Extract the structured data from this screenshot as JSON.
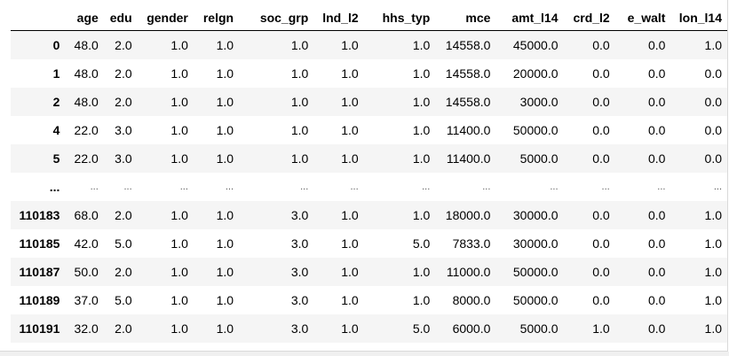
{
  "dataframe": {
    "columns": [
      "age",
      "edu",
      "gender",
      "relgn",
      "soc_grp",
      "lnd_l2",
      "hhs_typ",
      "mce",
      "amt_l14",
      "crd_l2",
      "e_walt",
      "lon_l14"
    ],
    "rows": [
      {
        "index": "0",
        "cells": [
          "48.0",
          "2.0",
          "1.0",
          "1.0",
          "1.0",
          "1.0",
          "1.0",
          "14558.0",
          "45000.0",
          "0.0",
          "0.0",
          "1.0"
        ]
      },
      {
        "index": "1",
        "cells": [
          "48.0",
          "2.0",
          "1.0",
          "1.0",
          "1.0",
          "1.0",
          "1.0",
          "14558.0",
          "20000.0",
          "0.0",
          "0.0",
          "0.0"
        ]
      },
      {
        "index": "2",
        "cells": [
          "48.0",
          "2.0",
          "1.0",
          "1.0",
          "1.0",
          "1.0",
          "1.0",
          "14558.0",
          "3000.0",
          "0.0",
          "0.0",
          "0.0"
        ]
      },
      {
        "index": "4",
        "cells": [
          "22.0",
          "3.0",
          "1.0",
          "1.0",
          "1.0",
          "1.0",
          "1.0",
          "11400.0",
          "50000.0",
          "0.0",
          "0.0",
          "0.0"
        ]
      },
      {
        "index": "5",
        "cells": [
          "22.0",
          "3.0",
          "1.0",
          "1.0",
          "1.0",
          "1.0",
          "1.0",
          "11400.0",
          "5000.0",
          "0.0",
          "0.0",
          "0.0"
        ]
      },
      {
        "index": "...",
        "cells": [
          "...",
          "...",
          "...",
          "...",
          "...",
          "...",
          "...",
          "...",
          "...",
          "...",
          "...",
          "..."
        ]
      },
      {
        "index": "110183",
        "cells": [
          "68.0",
          "2.0",
          "1.0",
          "1.0",
          "3.0",
          "1.0",
          "1.0",
          "18000.0",
          "30000.0",
          "0.0",
          "0.0",
          "1.0"
        ]
      },
      {
        "index": "110185",
        "cells": [
          "42.0",
          "5.0",
          "1.0",
          "1.0",
          "3.0",
          "1.0",
          "5.0",
          "7833.0",
          "30000.0",
          "0.0",
          "0.0",
          "1.0"
        ]
      },
      {
        "index": "110187",
        "cells": [
          "50.0",
          "2.0",
          "1.0",
          "1.0",
          "3.0",
          "1.0",
          "1.0",
          "11000.0",
          "50000.0",
          "0.0",
          "0.0",
          "1.0"
        ]
      },
      {
        "index": "110189",
        "cells": [
          "37.0",
          "5.0",
          "1.0",
          "1.0",
          "3.0",
          "1.0",
          "1.0",
          "8000.0",
          "50000.0",
          "0.0",
          "0.0",
          "1.0"
        ]
      },
      {
        "index": "110191",
        "cells": [
          "32.0",
          "2.0",
          "1.0",
          "1.0",
          "3.0",
          "1.0",
          "5.0",
          "6000.0",
          "5000.0",
          "1.0",
          "0.0",
          "1.0"
        ]
      }
    ]
  },
  "colors": {
    "stripe": "#f5f5f5",
    "header_rule": "#000000"
  }
}
